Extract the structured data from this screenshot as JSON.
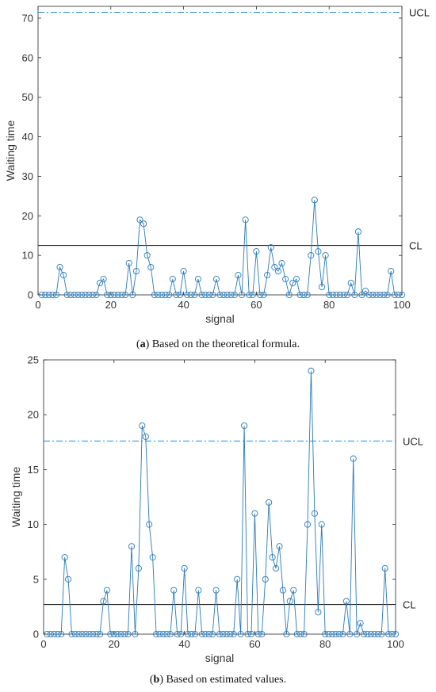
{
  "chart_data": [
    {
      "type": "line",
      "caption_letter": "a",
      "caption_text": "Based on the theoretical formula.",
      "xlabel": "signal",
      "ylabel": "Waiting time",
      "xlim": [
        0,
        100
      ],
      "ylim": [
        0,
        73
      ],
      "xticks": [
        0,
        20,
        40,
        60,
        80,
        100
      ],
      "yticks": [
        0,
        10,
        20,
        30,
        40,
        50,
        60,
        70
      ],
      "grid": false,
      "ucl": {
        "label": "UCL",
        "value": 71.5,
        "style": "dash-dot",
        "color": "#2a8ad4"
      },
      "cl": {
        "label": "CL",
        "value": 12.5,
        "style": "solid",
        "color": "#000000"
      },
      "series": [
        {
          "color": "#2a7ab8",
          "marker": "circle",
          "x": [
            1,
            2,
            3,
            4,
            5,
            6,
            7,
            8,
            9,
            10,
            11,
            12,
            13,
            14,
            15,
            16,
            17,
            18,
            19,
            20,
            21,
            22,
            23,
            24,
            25,
            26,
            27,
            28,
            29,
            30,
            31,
            32,
            33,
            34,
            35,
            36,
            37,
            38,
            39,
            40,
            41,
            42,
            43,
            44,
            45,
            46,
            47,
            48,
            49,
            50,
            51,
            52,
            53,
            54,
            55,
            56,
            57,
            58,
            59,
            60,
            61,
            62,
            63,
            64,
            65,
            66,
            67,
            68,
            69,
            70,
            71,
            72,
            73,
            74,
            75,
            76,
            77,
            78,
            79,
            80,
            81,
            82,
            83,
            84,
            85,
            86,
            87,
            88,
            89,
            90,
            91,
            92,
            93,
            94,
            95,
            96,
            97,
            98,
            99,
            100
          ],
          "values": [
            0,
            0,
            0,
            0,
            0,
            7,
            5,
            0,
            0,
            0,
            0,
            0,
            0,
            0,
            0,
            0,
            3,
            4,
            0,
            0,
            0,
            0,
            0,
            0,
            8,
            0,
            6,
            19,
            18,
            10,
            7,
            0,
            0,
            0,
            0,
            0,
            4,
            0,
            0,
            6,
            0,
            0,
            0,
            4,
            0,
            0,
            0,
            0,
            4,
            0,
            0,
            0,
            0,
            0,
            5,
            0,
            19,
            0,
            0,
            11,
            0,
            0,
            5,
            12,
            7,
            6,
            8,
            4,
            0,
            3,
            4,
            0,
            0,
            0,
            10,
            24,
            11,
            2,
            10,
            0,
            0,
            0,
            0,
            0,
            0,
            3,
            0,
            16,
            0,
            1,
            0,
            0,
            0,
            0,
            0,
            0,
            6,
            0,
            0,
            0
          ]
        }
      ]
    },
    {
      "type": "line",
      "caption_letter": "b",
      "caption_text": "Based on estimated values.",
      "xlabel": "signal",
      "ylabel": "Waiting time",
      "xlim": [
        0,
        100
      ],
      "ylim": [
        0,
        25
      ],
      "xticks": [
        0,
        20,
        40,
        60,
        80,
        100
      ],
      "yticks": [
        0,
        5,
        10,
        15,
        20,
        25
      ],
      "grid": false,
      "ucl": {
        "label": "UCL",
        "value": 17.6,
        "style": "dash-dot",
        "color": "#2a8ad4"
      },
      "cl": {
        "label": "CL",
        "value": 2.7,
        "style": "solid",
        "color": "#000000"
      },
      "series": [
        {
          "color": "#2a7ab8",
          "marker": "circle",
          "x": [
            1,
            2,
            3,
            4,
            5,
            6,
            7,
            8,
            9,
            10,
            11,
            12,
            13,
            14,
            15,
            16,
            17,
            18,
            19,
            20,
            21,
            22,
            23,
            24,
            25,
            26,
            27,
            28,
            29,
            30,
            31,
            32,
            33,
            34,
            35,
            36,
            37,
            38,
            39,
            40,
            41,
            42,
            43,
            44,
            45,
            46,
            47,
            48,
            49,
            50,
            51,
            52,
            53,
            54,
            55,
            56,
            57,
            58,
            59,
            60,
            61,
            62,
            63,
            64,
            65,
            66,
            67,
            68,
            69,
            70,
            71,
            72,
            73,
            74,
            75,
            76,
            77,
            78,
            79,
            80,
            81,
            82,
            83,
            84,
            85,
            86,
            87,
            88,
            89,
            90,
            91,
            92,
            93,
            94,
            95,
            96,
            97,
            98,
            99,
            100
          ],
          "values": [
            0,
            0,
            0,
            0,
            0,
            7,
            5,
            0,
            0,
            0,
            0,
            0,
            0,
            0,
            0,
            0,
            3,
            4,
            0,
            0,
            0,
            0,
            0,
            0,
            8,
            0,
            6,
            19,
            18,
            10,
            7,
            0,
            0,
            0,
            0,
            0,
            4,
            0,
            0,
            6,
            0,
            0,
            0,
            4,
            0,
            0,
            0,
            0,
            4,
            0,
            0,
            0,
            0,
            0,
            5,
            0,
            19,
            0,
            0,
            11,
            0,
            0,
            5,
            12,
            7,
            6,
            8,
            4,
            0,
            3,
            4,
            0,
            0,
            0,
            10,
            24,
            11,
            2,
            10,
            0,
            0,
            0,
            0,
            0,
            0,
            3,
            0,
            16,
            0,
            1,
            0,
            0,
            0,
            0,
            0,
            0,
            6,
            0,
            0,
            0
          ]
        }
      ]
    }
  ]
}
